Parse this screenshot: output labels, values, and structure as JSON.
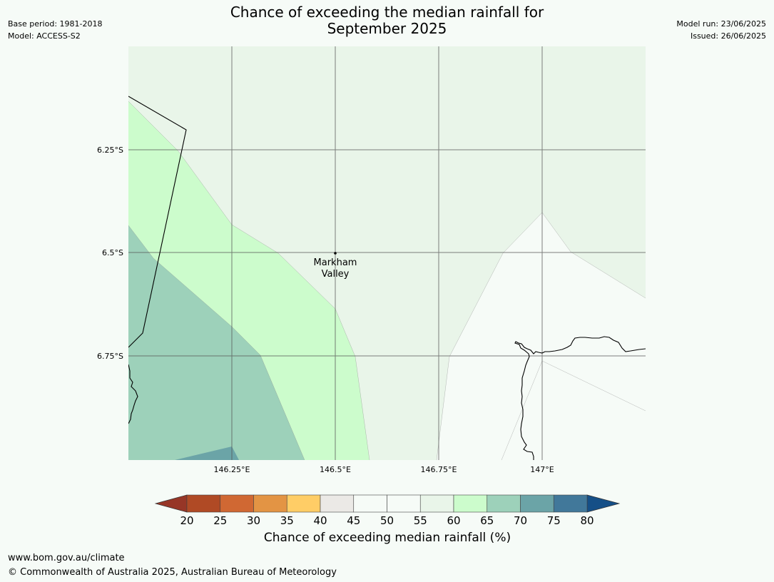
{
  "header": {
    "title_line1": "Chance of exceeding the median rainfall for",
    "title_line2": "September 2025",
    "base_period": "Base period: 1981-2018",
    "model": "Model: ACCESS-S2",
    "model_run": "Model run: 23/06/2025",
    "issued": "Issued: 26/06/2025"
  },
  "map": {
    "lat_labels": [
      "6.25°S",
      "6.5°S",
      "6.75°S"
    ],
    "lon_labels": [
      "146.25°E",
      "146.5°E",
      "146.75°E",
      "147°E"
    ],
    "place": {
      "name_line1": "Markham",
      "name_line2": "Valley"
    },
    "colors": {
      "band_45_50": "#f6fbf7",
      "band_55_60": "#e9f5e9",
      "band_60_65": "#ccfccc",
      "band_65_70": "#9dd1ba",
      "band_70_75": "#6ba4a7",
      "grid": "#555555",
      "coast": "#000000"
    }
  },
  "legend": {
    "title": "Chance of exceeding median rainfall (%)",
    "ticks": [
      "20",
      "25",
      "30",
      "35",
      "40",
      "45",
      "50",
      "55",
      "60",
      "65",
      "70",
      "75",
      "80"
    ],
    "low_extend_color": "#973627",
    "high_extend_color": "#154f87",
    "colors": [
      "#b04a25",
      "#d06833",
      "#e39444",
      "#ffcd66",
      "#ebe9e6",
      "#f6fbf7",
      "#f6fbf7",
      "#e9f5e9",
      "#ccfccc",
      "#9dd1ba",
      "#6ba4a7",
      "#41789a"
    ]
  },
  "footer": {
    "url": "www.bom.gov.au/climate",
    "copyright": "© Commonwealth of Australia 2025, Australian Bureau of Meteorology"
  }
}
